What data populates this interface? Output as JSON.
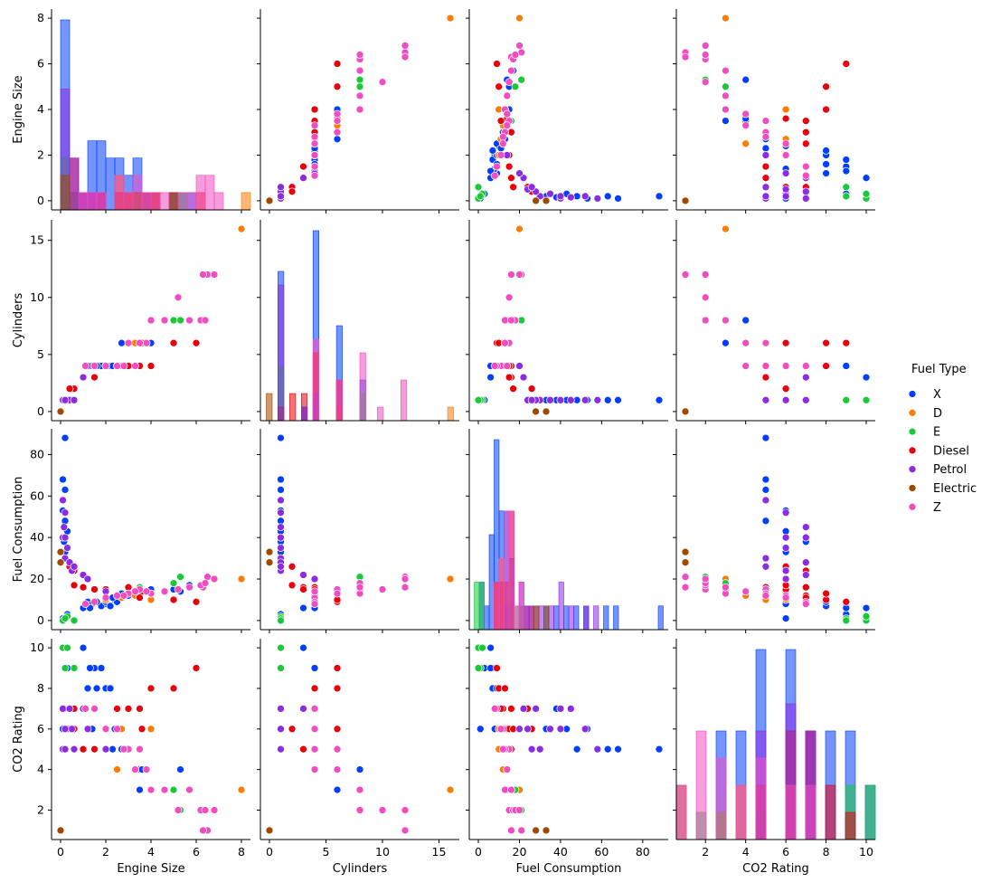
{
  "chart_data": {
    "type": "scatter",
    "subtype": "pairplot",
    "variables": [
      "Engine Size",
      "Cylinders",
      "Fuel Consumption",
      "CO2 Rating"
    ],
    "diagonal": "histogram",
    "axis_ranges": {
      "Engine Size": [
        -0.4,
        8.4
      ],
      "Cylinders": [
        -0.8,
        16.8
      ],
      "Fuel Consumption": [
        -4.4,
        92.4
      ],
      "CO2 Rating": [
        0.55,
        10.45
      ]
    },
    "ticks": {
      "Engine Size": [
        0,
        2,
        4,
        6,
        8
      ],
      "Cylinders": [
        0,
        5,
        10,
        15
      ],
      "Cylinders_x": [
        0,
        5,
        10,
        15
      ],
      "Fuel Consumption": [
        0,
        20,
        40,
        60,
        80
      ],
      "CO2 Rating": [
        2,
        4,
        6,
        8,
        10
      ],
      "CO2 Rating_x": [
        2,
        4,
        6,
        8,
        10
      ]
    },
    "legend": {
      "title": "Fuel Type",
      "placement": "right-center",
      "entries": [
        {
          "label": "X",
          "color": "#023eff"
        },
        {
          "label": "D",
          "color": "#ff7c00"
        },
        {
          "label": "E",
          "color": "#1ac938"
        },
        {
          "label": "Diesel",
          "color": "#e8000b"
        },
        {
          "label": "Petrol",
          "color": "#8b2be2"
        },
        {
          "label": "Electric",
          "color": "#9f4800"
        },
        {
          "label": "Z",
          "color": "#f14cc1"
        }
      ]
    },
    "grid": false,
    "series": [
      {
        "name": "X",
        "points": [
          [
            1.5,
            4,
            8.5,
            9
          ],
          [
            1.2,
            4,
            9,
            8
          ],
          [
            0.2,
            1,
            88,
            5
          ],
          [
            0.1,
            1,
            68,
            5
          ],
          [
            0.2,
            1,
            63,
            5
          ],
          [
            0.3,
            1,
            2,
            10
          ],
          [
            2.0,
            4,
            8,
            8
          ],
          [
            2.5,
            4,
            11,
            7
          ],
          [
            3.0,
            6,
            12,
            5
          ],
          [
            3.5,
            6,
            12,
            4
          ],
          [
            5.0,
            8,
            15,
            3
          ],
          [
            5.7,
            8,
            17,
            3
          ],
          [
            1.8,
            4,
            7,
            9
          ],
          [
            2.0,
            4,
            9,
            6
          ],
          [
            2.4,
            4,
            10,
            6
          ],
          [
            2.7,
            6,
            13,
            5
          ],
          [
            3.6,
            6,
            14,
            4
          ],
          [
            1.0,
            3,
            6,
            10
          ],
          [
            1.4,
            4,
            8,
            6
          ],
          [
            0.1,
            1,
            53,
            6
          ],
          [
            0.2,
            1,
            48,
            5
          ],
          [
            0.3,
            1,
            43,
            6
          ],
          [
            0.15,
            1,
            38,
            7
          ],
          [
            2.5,
            4,
            9,
            7
          ],
          [
            3.3,
            6,
            13,
            4
          ],
          [
            4.0,
            6,
            15,
            3
          ],
          [
            2.2,
            4,
            7,
            8
          ],
          [
            1.6,
            4,
            9,
            8
          ],
          [
            0.3,
            1,
            3,
            9
          ],
          [
            0.1,
            1,
            1,
            6
          ],
          [
            5.3,
            8,
            14,
            4
          ],
          [
            2.3,
            4,
            11,
            5
          ],
          [
            3.0,
            4,
            12,
            7
          ],
          [
            1.3,
            4,
            6,
            9
          ],
          [
            3.5,
            6,
            13,
            3
          ],
          [
            0.2,
            1,
            33,
            6
          ]
        ]
      },
      {
        "name": "D",
        "points": [
          [
            8.0,
            16,
            20,
            3
          ],
          [
            3.0,
            4,
            13,
            5
          ],
          [
            2.5,
            4,
            12,
            4
          ],
          [
            4.0,
            4,
            10,
            6
          ],
          [
            3.3,
            6,
            12,
            4
          ],
          [
            2.0,
            4,
            10,
            5
          ],
          [
            2.7,
            4,
            11,
            6
          ]
        ]
      },
      {
        "name": "E",
        "points": [
          [
            0.1,
            1,
            0,
            10
          ],
          [
            0.3,
            1,
            2,
            10
          ],
          [
            5.3,
            8,
            21,
            2
          ],
          [
            5.0,
            8,
            18,
            3
          ],
          [
            0.2,
            1,
            1,
            9
          ],
          [
            3.5,
            4,
            16,
            5
          ],
          [
            0.6,
            1,
            0,
            9
          ]
        ]
      },
      {
        "name": "Diesel",
        "points": [
          [
            6.0,
            6,
            9,
            9
          ],
          [
            5.0,
            6,
            10,
            8
          ],
          [
            4.0,
            4,
            13,
            8
          ],
          [
            3.0,
            4,
            16,
            7
          ],
          [
            3.6,
            6,
            14,
            6
          ],
          [
            2.0,
            4,
            15,
            6
          ],
          [
            0.6,
            2,
            17,
            6
          ],
          [
            1.0,
            3,
            16,
            5
          ],
          [
            0.6,
            1,
            24,
            7
          ],
          [
            2.5,
            4,
            12,
            7
          ],
          [
            3.5,
            4,
            11,
            7
          ],
          [
            0.4,
            2,
            26,
            6
          ],
          [
            1.5,
            3,
            15,
            5
          ]
        ]
      },
      {
        "name": "Petrol",
        "points": [
          [
            0.1,
            1,
            58,
            5
          ],
          [
            0.2,
            1,
            52,
            6
          ],
          [
            0.15,
            1,
            45,
            7
          ],
          [
            0.1,
            1,
            40,
            7
          ],
          [
            0.3,
            1,
            35,
            6
          ],
          [
            0.2,
            1,
            30,
            5
          ],
          [
            0.5,
            1,
            24,
            6
          ],
          [
            1.0,
            3,
            22,
            7
          ],
          [
            1.2,
            4,
            20,
            6
          ],
          [
            2.0,
            4,
            14,
            5
          ],
          [
            0.4,
            1,
            28,
            7
          ],
          [
            0.6,
            1,
            26,
            5
          ],
          [
            0.2,
            1,
            40,
            6
          ]
        ]
      },
      {
        "name": "Electric",
        "points": [
          [
            0.0,
            0,
            33,
            1
          ],
          [
            0.0,
            0,
            28,
            1
          ]
        ]
      },
      {
        "name": "Z",
        "points": [
          [
            6.5,
            12,
            21,
            1
          ],
          [
            6.3,
            12,
            16,
            1
          ],
          [
            5.2,
            10,
            15,
            2
          ],
          [
            6.2,
            8,
            17,
            2
          ],
          [
            4.6,
            8,
            14,
            3
          ],
          [
            4.0,
            8,
            13,
            3
          ],
          [
            3.8,
            6,
            14,
            4
          ],
          [
            3.5,
            6,
            15,
            5
          ],
          [
            3.0,
            6,
            13,
            5
          ],
          [
            2.8,
            4,
            12,
            5
          ],
          [
            2.5,
            4,
            12,
            6
          ],
          [
            2.0,
            4,
            11,
            6
          ],
          [
            1.5,
            4,
            9,
            7
          ],
          [
            1.1,
            4,
            8,
            7
          ],
          [
            6.4,
            8,
            18,
            2
          ],
          [
            5.7,
            8,
            16,
            3
          ],
          [
            6.8,
            12,
            20,
            2
          ],
          [
            3.3,
            4,
            14,
            4
          ]
        ]
      }
    ]
  }
}
